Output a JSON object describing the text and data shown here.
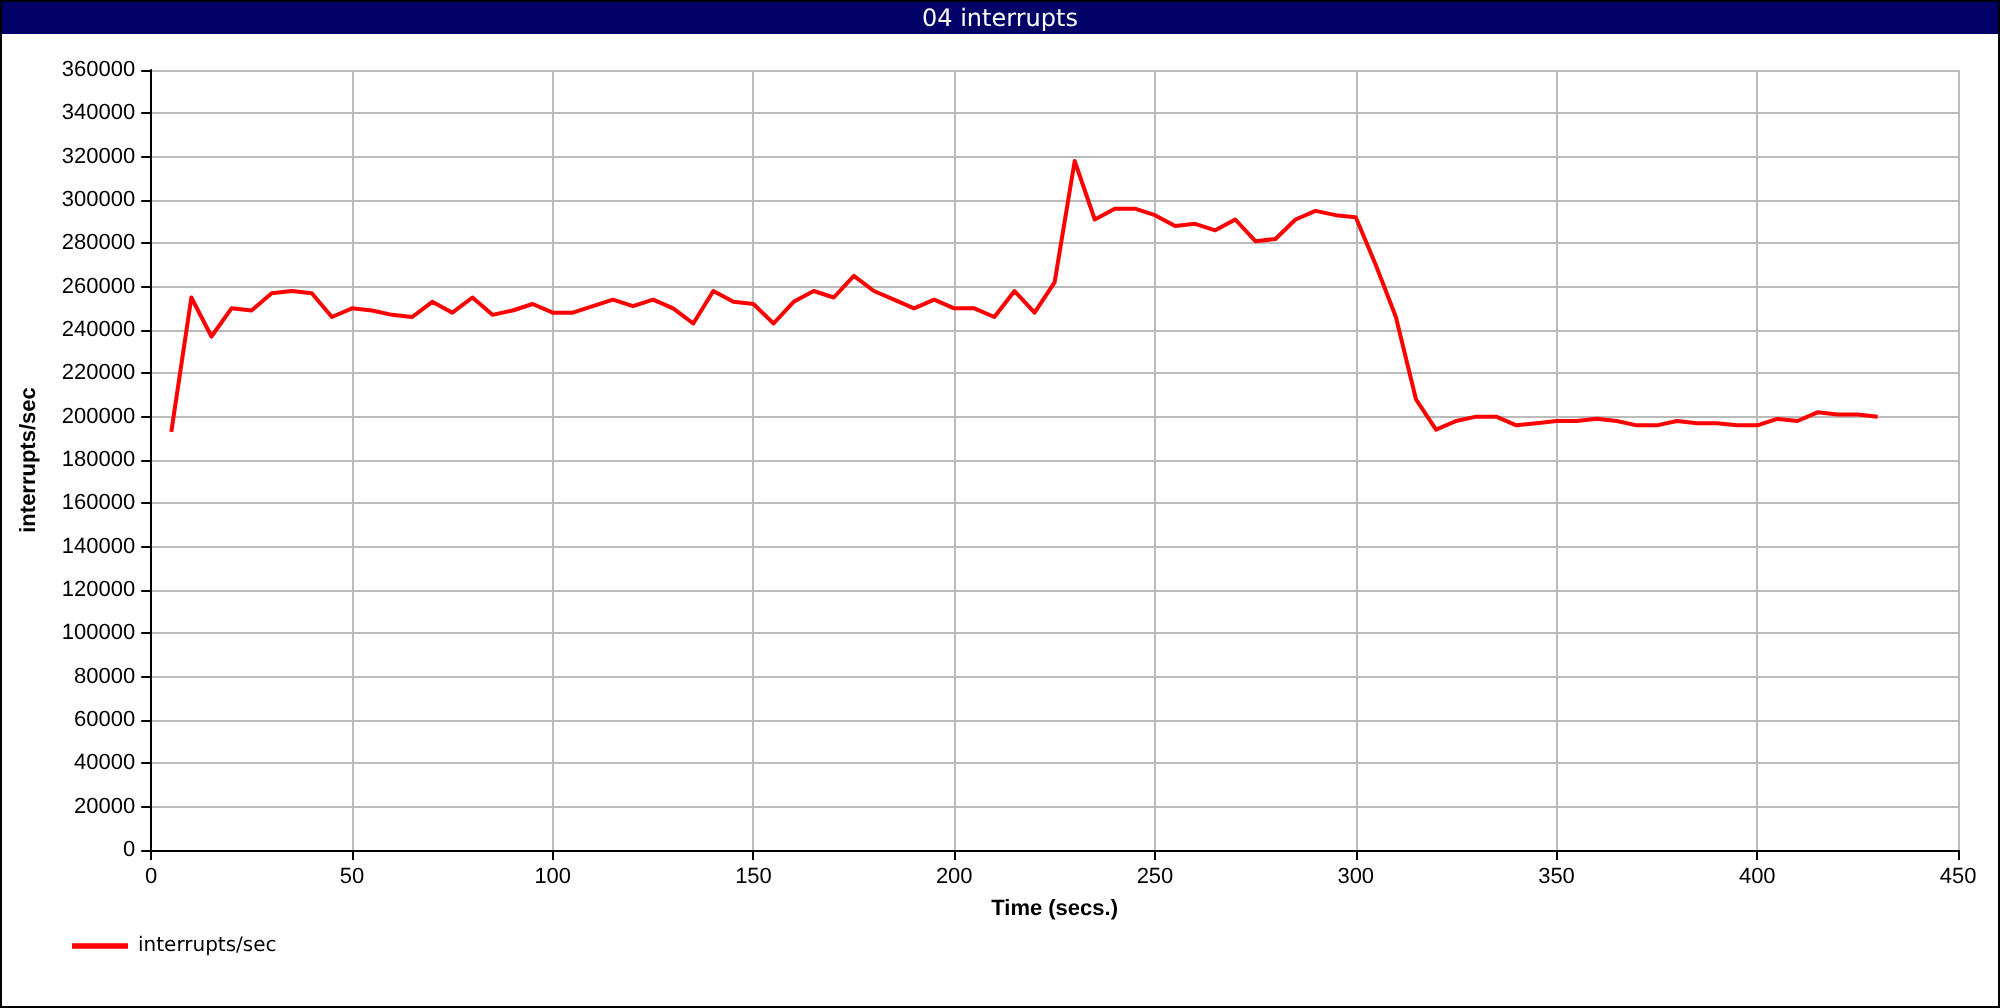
{
  "chart_data": {
    "type": "line",
    "title": "04 interrupts",
    "xlabel": "Time (secs.)",
    "ylabel": "interrupts/sec",
    "x": [
      5,
      10,
      15,
      20,
      25,
      30,
      35,
      40,
      45,
      50,
      55,
      60,
      65,
      70,
      75,
      80,
      85,
      90,
      95,
      100,
      105,
      110,
      115,
      120,
      125,
      130,
      135,
      140,
      145,
      150,
      155,
      160,
      165,
      170,
      175,
      180,
      185,
      190,
      195,
      200,
      205,
      210,
      215,
      220,
      225,
      230,
      235,
      240,
      245,
      250,
      255,
      260,
      265,
      270,
      275,
      280,
      285,
      290,
      295,
      300,
      305,
      310,
      315,
      320,
      325,
      330,
      335,
      340,
      345,
      350,
      355,
      360,
      365,
      370,
      375,
      380,
      385,
      390,
      395,
      400,
      405,
      410,
      415,
      420,
      425,
      430
    ],
    "series": [
      {
        "name": "interrupts/sec",
        "color": "#ff0000",
        "values": [
          193000,
          255000,
          237000,
          250000,
          249000,
          257000,
          258000,
          257000,
          246000,
          250000,
          249000,
          247000,
          246000,
          253000,
          248000,
          255000,
          247000,
          249000,
          252000,
          248000,
          248000,
          251000,
          254000,
          251000,
          254000,
          250000,
          243000,
          258000,
          253000,
          252000,
          243000,
          253000,
          258000,
          255000,
          265000,
          258000,
          254000,
          250000,
          254000,
          250000,
          250000,
          246000,
          258000,
          248000,
          262000,
          318000,
          291000,
          296000,
          296000,
          293000,
          288000,
          289000,
          286000,
          291000,
          281000,
          282000,
          291000,
          295000,
          293000,
          292000,
          270000,
          246000,
          208000,
          194000,
          198000,
          200000,
          200000,
          196000,
          197000,
          198000,
          198000,
          199000,
          198000,
          196000,
          196000,
          198000,
          197000,
          197000,
          196000,
          196000,
          199000,
          198000,
          202000,
          201000,
          201000,
          200000
        ]
      }
    ],
    "xlim": [
      0,
      450
    ],
    "xticks": [
      0,
      50,
      100,
      150,
      200,
      250,
      300,
      350,
      400,
      450
    ],
    "ylim": [
      0,
      360000
    ],
    "yticks": [
      0,
      20000,
      40000,
      60000,
      80000,
      100000,
      120000,
      140000,
      160000,
      180000,
      200000,
      220000,
      240000,
      260000,
      280000,
      300000,
      320000,
      340000,
      360000
    ],
    "grid": true,
    "legend": "bottom left",
    "marker": "none",
    "line_style": "solid"
  }
}
